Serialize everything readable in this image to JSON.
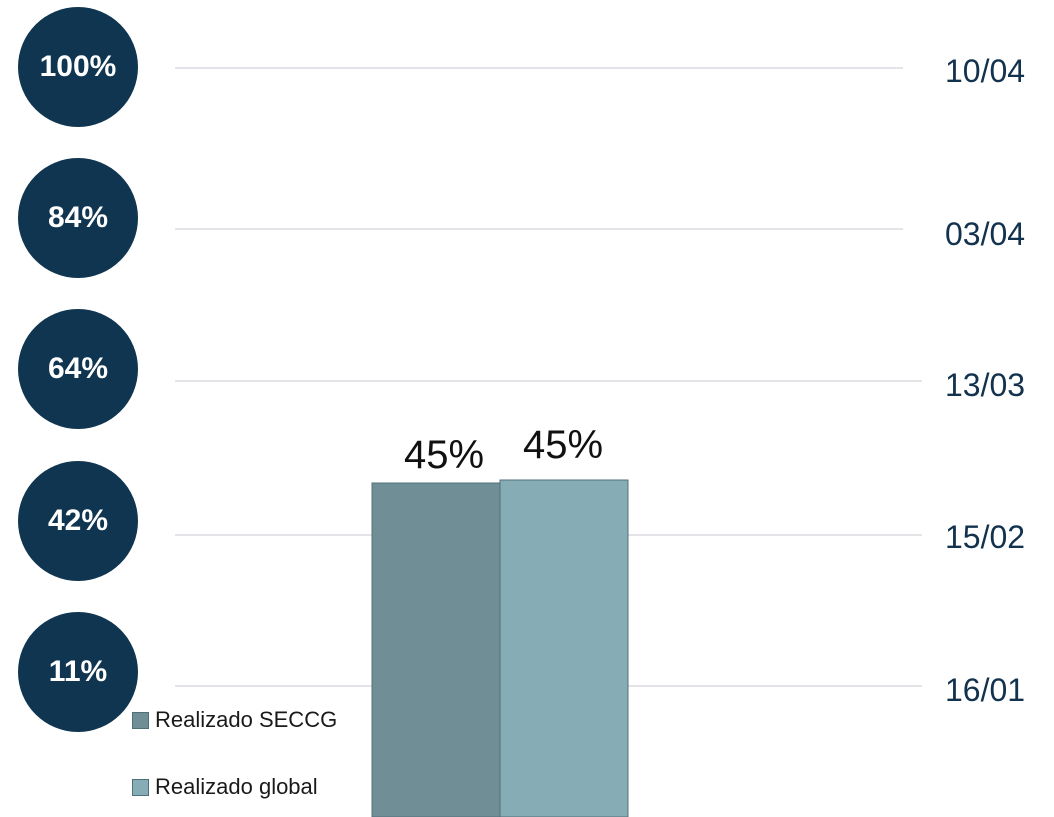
{
  "colors": {
    "milestone_fill": "#0f3550",
    "gridline": "#d9dcdf",
    "series_1": "#6f8e96",
    "series_2": "#86acb6"
  },
  "milestones": [
    {
      "percent": "100%",
      "date": "10/04"
    },
    {
      "percent": "84%",
      "date": "03/04"
    },
    {
      "percent": "64%",
      "date": "13/03"
    },
    {
      "percent": "42%",
      "date": "15/02"
    },
    {
      "percent": "11%",
      "date": "16/01"
    }
  ],
  "chart_data": {
    "type": "bar",
    "series": [
      {
        "name": "Realizado SECCG",
        "value": 45,
        "label": "45%",
        "color": "#6f8e96"
      },
      {
        "name": "Realizado global",
        "value": 45,
        "label": "45%",
        "color": "#86acb6"
      }
    ],
    "ylim": [
      0,
      100
    ],
    "gridlines": [
      100,
      84,
      64,
      42,
      11
    ],
    "legend_placement": "bottom-left"
  }
}
